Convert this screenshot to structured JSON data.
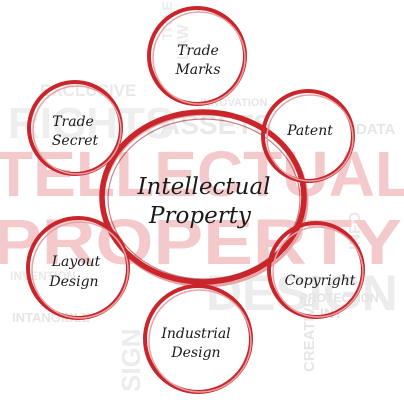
{
  "diagram": {
    "center_label": [
      "Intellectual",
      "Property"
    ],
    "nodes": [
      {
        "id": "trade-marks",
        "lines": [
          "Trade",
          "Marks"
        ]
      },
      {
        "id": "patent",
        "lines": [
          "Patent"
        ]
      },
      {
        "id": "copyright",
        "lines": [
          "Copyright"
        ]
      },
      {
        "id": "industrial-design",
        "lines": [
          "Industrial",
          "Design"
        ]
      },
      {
        "id": "layout-design",
        "lines": [
          "Layout",
          "Design"
        ]
      },
      {
        "id": "trade-secret",
        "lines": [
          "Trade",
          "Secret"
        ]
      }
    ]
  },
  "background_words": {
    "large_red": [
      "TELLECTUAL",
      "PROPERTY"
    ],
    "faint_gray": [
      "EXCLUSIVE",
      "RIGHTS",
      "ASSETS",
      "INNOVATION",
      "DATA",
      "DESIGN",
      "PROTECTION",
      "INTANGIBLE",
      "CREATIVE",
      "LAW",
      "TITLE",
      "SIGN",
      "INFO",
      "INVENTION",
      "INT"
    ]
  },
  "colors": {
    "ring": "#c9252b",
    "ring_dark": "#9e1a1f",
    "ring_shadow": "#e6a3a5",
    "watermark_red": "#f3c9cb",
    "watermark_gray": "#e9e9e9",
    "text": "#1a1a1a"
  }
}
